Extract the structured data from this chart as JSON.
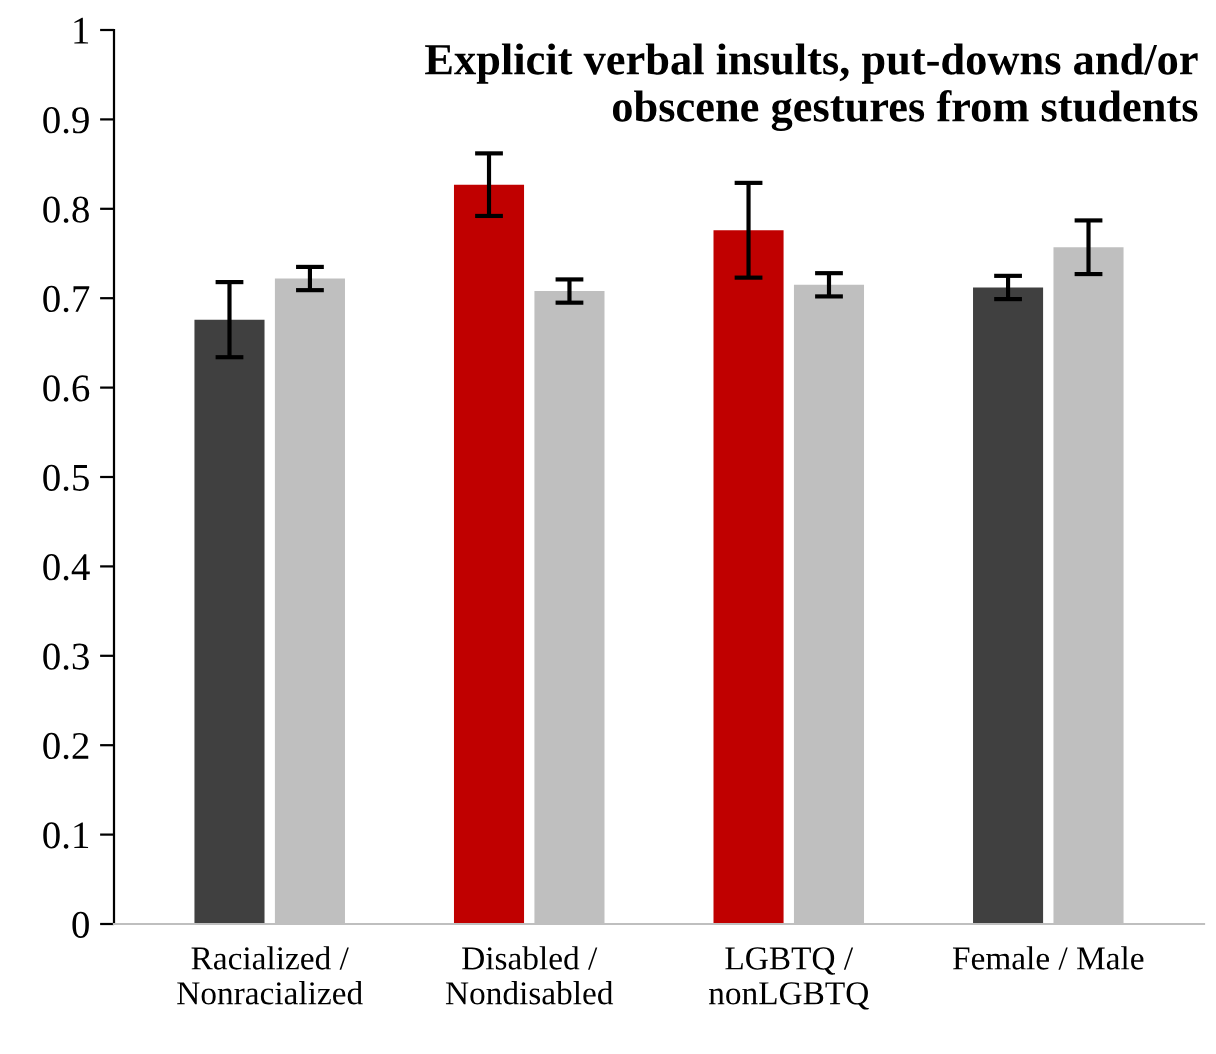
{
  "chart_data": {
    "type": "bar",
    "title": "Explicit verbal insults, put-downs and/or\nobscene gestures from students",
    "categories": [
      "Racialized /\nNonracialized",
      "Disabled /\nNondisabled",
      "LGBTQ /\nnonLGBTQ",
      "Female / Male"
    ],
    "series": [
      {
        "colors": [
          "#404040",
          "#c00000",
          "#c00000",
          "#404040"
        ],
        "values": [
          0.676,
          0.827,
          0.776,
          0.712
        ],
        "errors": [
          0.042,
          0.035,
          0.053,
          0.013
        ]
      },
      {
        "color": "#bfbfbf",
        "values": [
          0.722,
          0.708,
          0.715,
          0.757
        ],
        "errors": [
          0.013,
          0.013,
          0.013,
          0.03
        ]
      }
    ],
    "ylim": [
      0,
      1
    ],
    "yticks": [
      0,
      0.1,
      0.2,
      0.3,
      0.4,
      0.5,
      0.6,
      0.7,
      0.8,
      0.9,
      1
    ],
    "grid": false,
    "legend": false
  }
}
